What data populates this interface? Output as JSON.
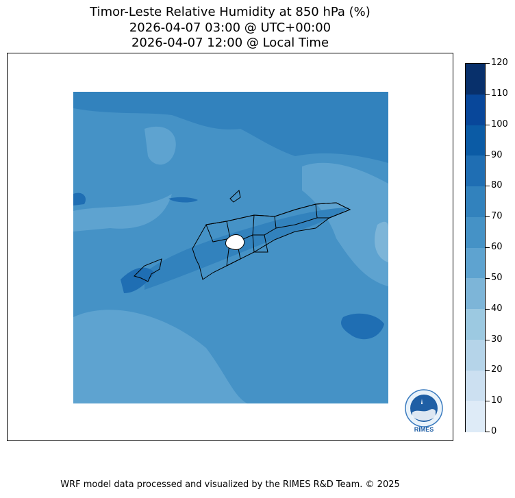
{
  "title": {
    "line1": "Timor-Leste Relative Humidity at 850 hPa (%)",
    "line2": "2026-04-07 03:00 @ UTC+00:00",
    "line3": "2026-04-07 12:00 @ Local Time"
  },
  "colorbar": {
    "ticks": [
      "120",
      "110",
      "100",
      "90",
      "80",
      "70",
      "60",
      "50",
      "40",
      "30",
      "20",
      "10",
      "0"
    ],
    "colors": [
      "#08306b",
      "#08479a",
      "#0b5ba5",
      "#1f6eb3",
      "#3282bd",
      "#4592c6",
      "#5ea3d0",
      "#7db5d8",
      "#9cc9e1",
      "#b5d4e9",
      "#cce0f1",
      "#deebf7",
      "#eff6fc"
    ]
  },
  "logo": {
    "text": "RIMES"
  },
  "footer": "WRF model data processed and visualized by the RIMES R&D Team. © 2025"
}
